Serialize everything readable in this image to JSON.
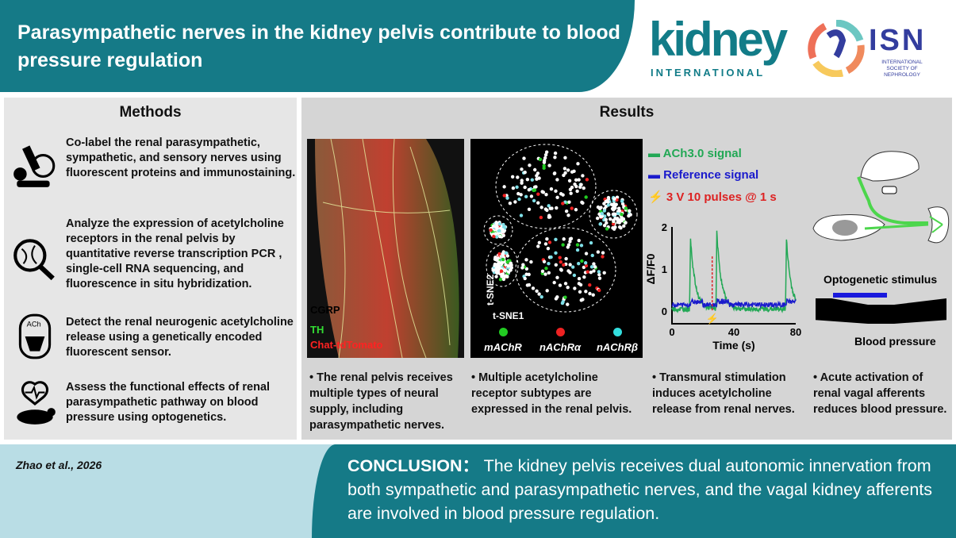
{
  "header": {
    "title": "Parasympathetic nerves in the kidney pelvis contribute to blood pressure regulation"
  },
  "logos": {
    "journal_main": "kidney",
    "journal_sub": "INTERNATIONAL",
    "society_main": "ISN",
    "society_sub": "INTERNATIONAL SOCIETY OF NEPHROLOGY"
  },
  "methods": {
    "title": "Methods",
    "items": [
      {
        "icon": "microscope-icon",
        "text": "Co-label the renal parasympathetic, sympathetic, and sensory nerves using fluorescent proteins and immunostaining."
      },
      {
        "icon": "dna-magnifier-icon",
        "text": "Analyze the expression of acetylcholine receptors in the renal pelvis by quantitative reverse transcription PCR , single-cell RNA sequencing, and fluorescence in situ hybridization."
      },
      {
        "icon": "ach-sensor-icon",
        "text": "Detect the renal neurogenic acetylcholine release using a genetically encoded fluorescent sensor."
      },
      {
        "icon": "mouse-heartbeat-icon",
        "text": "Assess the functional effects of renal parasympathetic pathway on blood pressure using optogenetics."
      }
    ]
  },
  "results": {
    "title": "Results",
    "panel1": {
      "labels": [
        "CGRP",
        "TH",
        "Chat-tdTomato"
      ],
      "label_colors": [
        "#ffffff",
        "#33dd33",
        "#ff2222"
      ],
      "caption": "• The renal pelvis receives multiple types of neural supply, including parasympathetic nerves."
    },
    "panel2": {
      "axis_y": "t-SNE2",
      "axis_x": "t-SNE1",
      "legend": [
        {
          "label": "mAChR",
          "color": "#22cc22"
        },
        {
          "label": "nAChRα",
          "color": "#ee2222"
        },
        {
          "label": "nAChRβ",
          "color": "#33dddd"
        }
      ],
      "caption": "• Multiple acetylcholine receptor subtypes are expressed in the renal pelvis."
    },
    "panel3": {
      "legend": [
        {
          "label": "ACh3.0 signal",
          "color": "#22a855"
        },
        {
          "label": "Reference signal",
          "color": "#1a1acc"
        },
        {
          "label": "3 V  10 pulses @ 1 s",
          "color": "#dd2222"
        }
      ],
      "ylabel": "ΔF/F0",
      "xlabel": "Time (s)",
      "yticks": [
        "0",
        "1",
        "2"
      ],
      "xticks": [
        "0",
        "40",
        "80"
      ],
      "caption": "• Transmural stimulation induces acetylcholine release from renal nerves."
    },
    "panel4": {
      "stimulus_label": "Optogenetic stimulus",
      "bp_label": "Blood pressure",
      "caption": "• Acute activation of renal vagal afferents reduces blood pressure."
    }
  },
  "chart_data": {
    "type": "line",
    "xlabel": "Time (s)",
    "ylabel": "ΔF/F0",
    "xlim": [
      0,
      80
    ],
    "ylim": [
      -0.3,
      2
    ],
    "series": [
      {
        "name": "ACh3.0 signal",
        "peaks_x": [
          12,
          29,
          74
        ],
        "peaks_y": [
          1.7,
          1.8,
          1.65
        ],
        "baseline": 0.05
      },
      {
        "name": "Reference signal",
        "baseline": 0.15
      }
    ],
    "stimulus_x": [
      26
    ]
  },
  "footer": {
    "citation": "Zhao et al., 2026",
    "conclusion_label": "CONCLUSION：",
    "conclusion_text": " The kidney pelvis receives dual autonomic innervation from both sympathetic and parasympathetic nerves, and the vagal kidney afferents are involved in blood pressure regulation."
  }
}
